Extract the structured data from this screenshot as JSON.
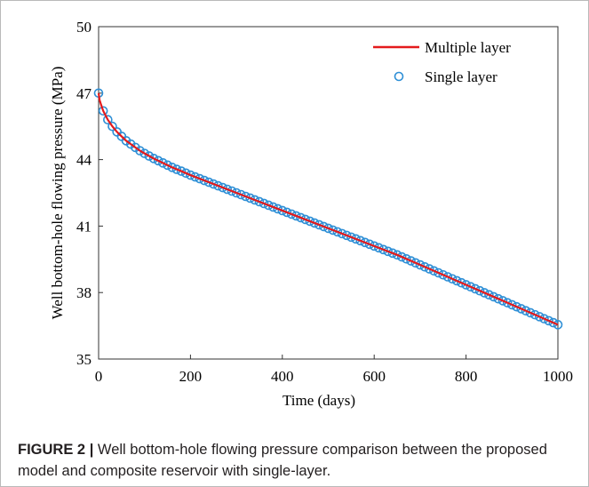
{
  "chart_data": {
    "type": "line",
    "xlabel": "Time (days)",
    "ylabel": "Well bottom-hole flowing pressure (MPa)",
    "xlim": [
      0,
      1000
    ],
    "ylim": [
      35,
      50
    ],
    "x_ticks": [
      0,
      200,
      400,
      600,
      800,
      1000
    ],
    "y_ticks": [
      35,
      38,
      41,
      44,
      47,
      50
    ],
    "grid": false,
    "legend_position": "top-right",
    "series": [
      {
        "name": "Multiple layer",
        "style": "line",
        "color": "#e41a1c",
        "x": [
          0,
          2,
          5,
          10,
          15,
          20,
          30,
          40,
          50,
          60,
          70,
          80,
          90,
          100,
          120,
          140,
          160,
          180,
          200,
          250,
          300,
          350,
          400,
          450,
          500,
          550,
          600,
          650,
          700,
          750,
          800,
          850,
          900,
          950,
          1000
        ],
        "y": [
          47.0,
          46.7,
          46.5,
          46.2,
          46.0,
          45.8,
          45.5,
          45.25,
          45.05,
          44.85,
          44.7,
          44.55,
          44.4,
          44.28,
          44.05,
          43.85,
          43.65,
          43.48,
          43.3,
          42.9,
          42.5,
          42.1,
          41.7,
          41.3,
          40.9,
          40.5,
          40.1,
          39.7,
          39.25,
          38.8,
          38.35,
          37.9,
          37.45,
          37.0,
          36.55
        ]
      },
      {
        "name": "Single layer",
        "style": "markers",
        "color": "#2e8fd6",
        "x": [
          0,
          10,
          20,
          30,
          40,
          50,
          60,
          70,
          80,
          90,
          100,
          110,
          120,
          130,
          140,
          150,
          160,
          170,
          180,
          190,
          200,
          210,
          220,
          230,
          240,
          250,
          260,
          270,
          280,
          290,
          300,
          310,
          320,
          330,
          340,
          350,
          360,
          370,
          380,
          390,
          400,
          410,
          420,
          430,
          440,
          450,
          460,
          470,
          480,
          490,
          500,
          510,
          520,
          530,
          540,
          550,
          560,
          570,
          580,
          590,
          600,
          610,
          620,
          630,
          640,
          650,
          660,
          670,
          680,
          690,
          700,
          710,
          720,
          730,
          740,
          750,
          760,
          770,
          780,
          790,
          800,
          810,
          820,
          830,
          840,
          850,
          860,
          870,
          880,
          890,
          900,
          910,
          920,
          930,
          940,
          950,
          960,
          970,
          980,
          990,
          1000
        ],
        "y": [
          47.0,
          46.2,
          45.8,
          45.5,
          45.25,
          45.05,
          44.85,
          44.7,
          44.55,
          44.4,
          44.28,
          44.16,
          44.05,
          43.95,
          43.85,
          43.75,
          43.65,
          43.56,
          43.48,
          43.39,
          43.3,
          43.22,
          43.14,
          43.06,
          42.98,
          42.9,
          42.82,
          42.74,
          42.66,
          42.58,
          42.5,
          42.42,
          42.34,
          42.26,
          42.18,
          42.1,
          42.02,
          41.94,
          41.86,
          41.78,
          41.7,
          41.62,
          41.54,
          41.46,
          41.38,
          41.3,
          41.22,
          41.14,
          41.06,
          40.98,
          40.9,
          40.82,
          40.74,
          40.66,
          40.58,
          40.5,
          40.42,
          40.34,
          40.26,
          40.18,
          40.1,
          40.02,
          39.94,
          39.86,
          39.78,
          39.7,
          39.61,
          39.52,
          39.43,
          39.34,
          39.25,
          39.16,
          39.07,
          38.98,
          38.89,
          38.8,
          38.71,
          38.62,
          38.53,
          38.44,
          38.35,
          38.26,
          38.17,
          38.08,
          37.99,
          37.9,
          37.81,
          37.72,
          37.63,
          37.54,
          37.45,
          37.36,
          37.27,
          37.18,
          37.09,
          37.0,
          36.91,
          36.82,
          36.73,
          36.64,
          36.55
        ]
      }
    ]
  },
  "caption": {
    "label": "FIGURE 2",
    "separator": "|",
    "text": " Well bottom-hole flowing pressure comparison between the proposed model and composite reservoir with single-layer."
  }
}
